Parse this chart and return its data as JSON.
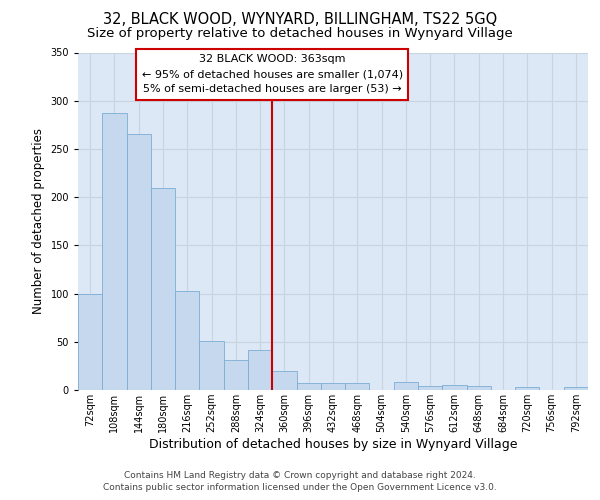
{
  "title": "32, BLACK WOOD, WYNYARD, BILLINGHAM, TS22 5GQ",
  "subtitle": "Size of property relative to detached houses in Wynyard Village",
  "xlabel": "Distribution of detached houses by size in Wynyard Village",
  "ylabel": "Number of detached properties",
  "bar_values": [
    100,
    287,
    265,
    210,
    103,
    51,
    31,
    41,
    20,
    7,
    7,
    7,
    0,
    8,
    4,
    5,
    4,
    0,
    3,
    0,
    3
  ],
  "bar_labels": [
    "72sqm",
    "108sqm",
    "144sqm",
    "180sqm",
    "216sqm",
    "252sqm",
    "288sqm",
    "324sqm",
    "360sqm",
    "396sqm",
    "432sqm",
    "468sqm",
    "504sqm",
    "540sqm",
    "576sqm",
    "612sqm",
    "648sqm",
    "684sqm",
    "720sqm",
    "756sqm",
    "792sqm"
  ],
  "bar_color": "#c5d8ee",
  "bar_edge_color": "#7aadd4",
  "annotation_line_label": "32 BLACK WOOD: 363sqm",
  "annotation_text_line2": "← 95% of detached houses are smaller (1,074)",
  "annotation_text_line3": "5% of semi-detached houses are larger (53) →",
  "annotation_box_color": "#ffffff",
  "annotation_box_edge_color": "#cc0000",
  "vline_color": "#cc0000",
  "vline_x_index": 8,
  "ylim": [
    0,
    350
  ],
  "yticks": [
    0,
    50,
    100,
    150,
    200,
    250,
    300,
    350
  ],
  "grid_color": "#c8d4e0",
  "background_color": "#dce8f5",
  "footer_line1": "Contains HM Land Registry data © Crown copyright and database right 2024.",
  "footer_line2": "Contains public sector information licensed under the Open Government Licence v3.0.",
  "title_fontsize": 10.5,
  "subtitle_fontsize": 9.5,
  "xlabel_fontsize": 9,
  "ylabel_fontsize": 8.5,
  "tick_fontsize": 7,
  "annotation_fontsize": 8,
  "footer_fontsize": 6.5
}
